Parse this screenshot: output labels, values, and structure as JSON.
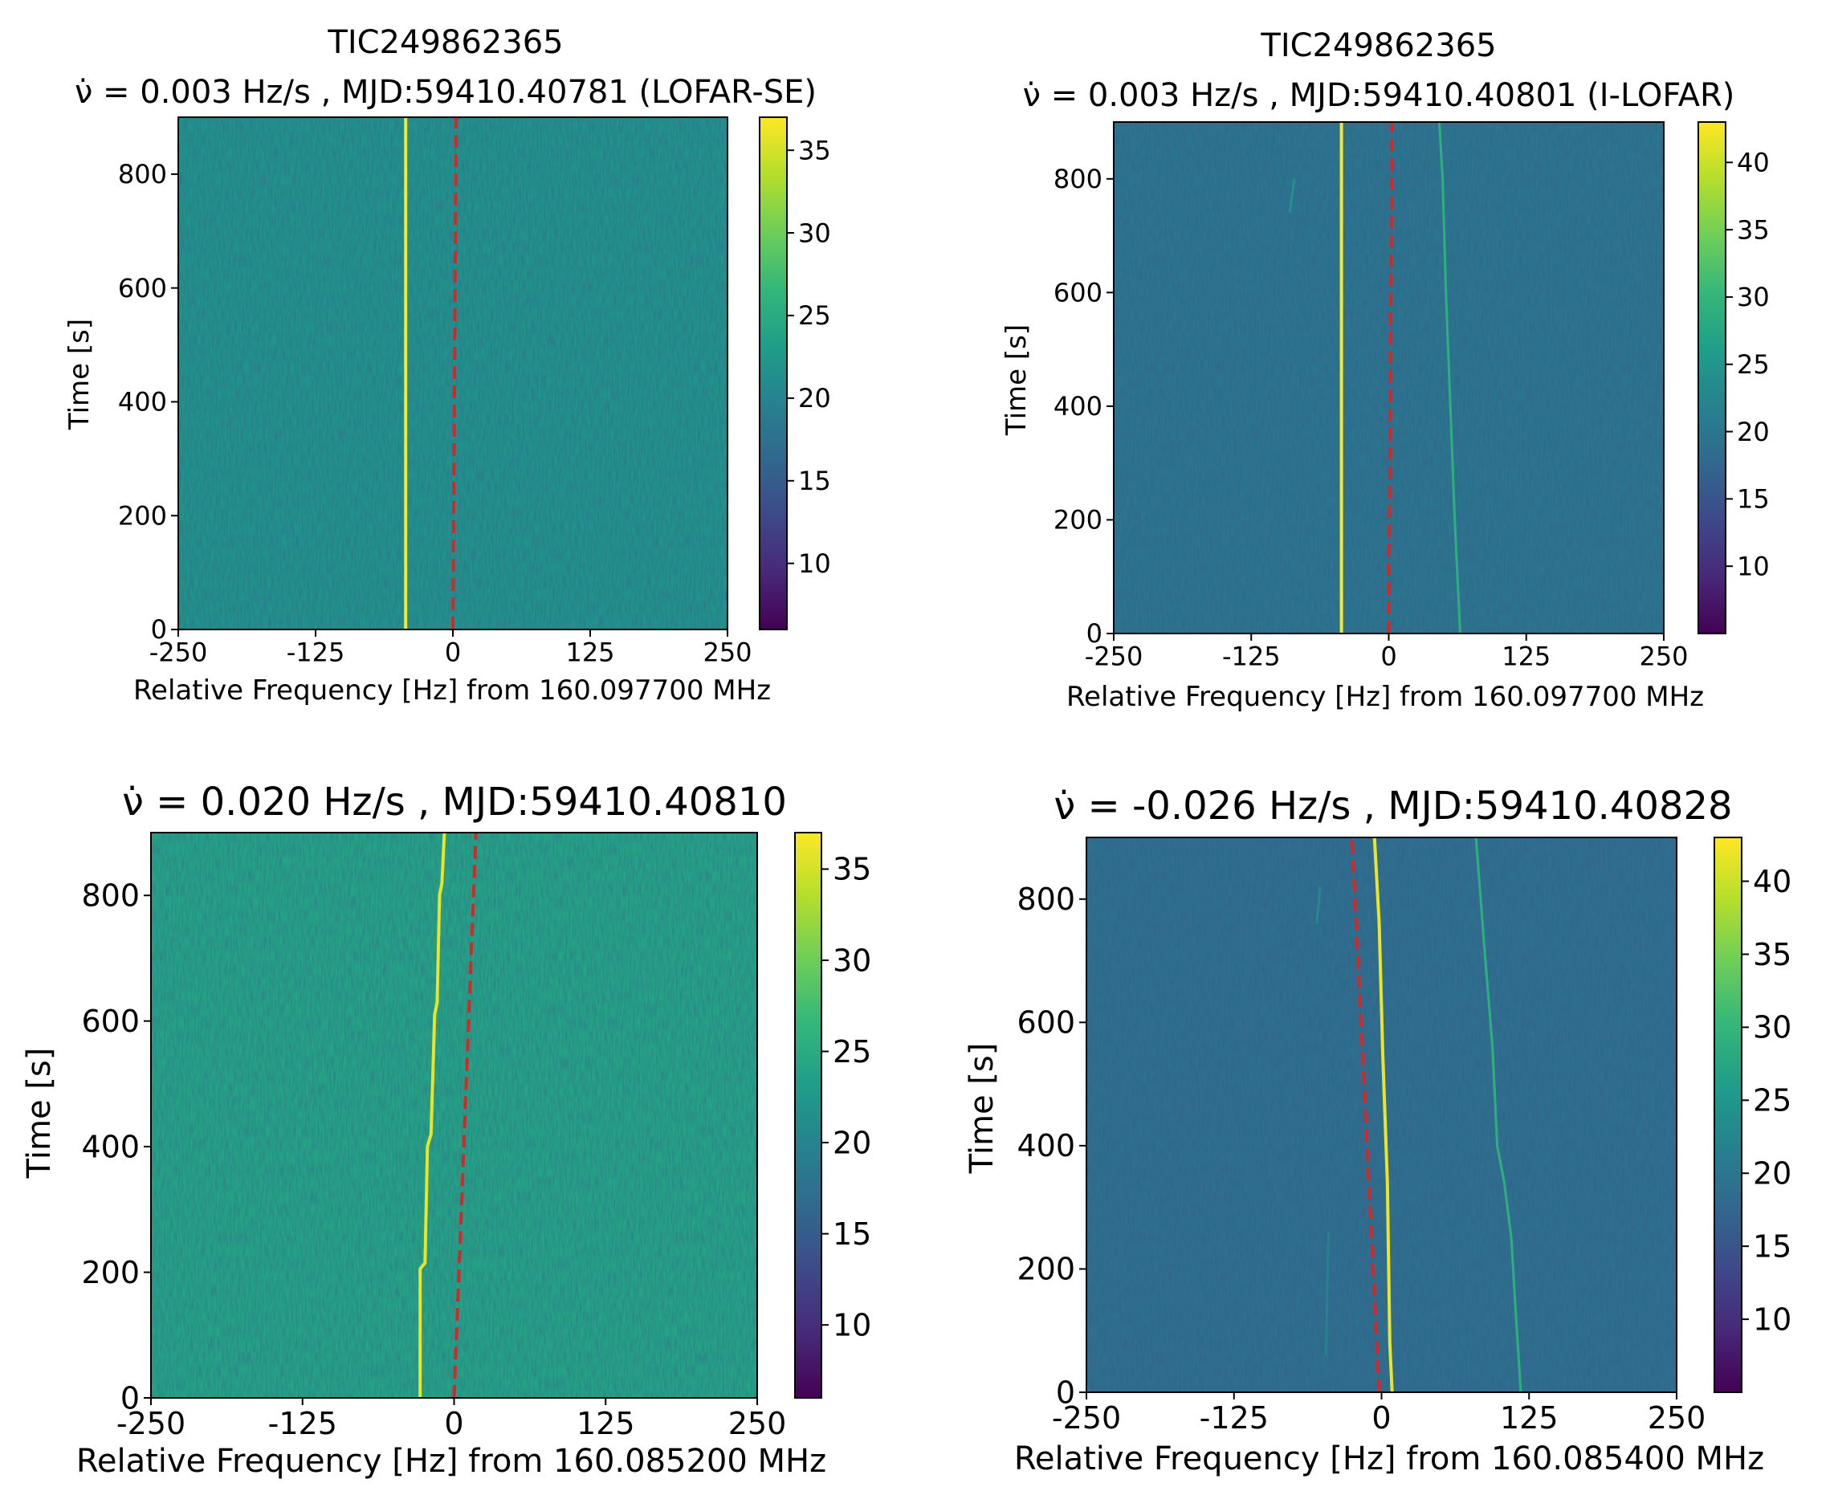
{
  "colormap": {
    "name": "viridis",
    "stops": [
      "#440154",
      "#482878",
      "#3e4989",
      "#31688e",
      "#26828e",
      "#1f9e89",
      "#35b779",
      "#6ece58",
      "#b5de2b",
      "#fde725"
    ]
  },
  "colors": {
    "drift_line": "#d62728",
    "axis": "#000000"
  },
  "chart_data": [
    {
      "type": "heatmap",
      "title": "TIC249862365",
      "subtitle": "ν̇ = 0.003 Hz/s , MJD:59410.40781 (LOFAR-SE)",
      "xlabel": "Relative Frequency [Hz] from 160.097700 MHz",
      "ylabel": "Time [s]",
      "xlim": [
        -250,
        250
      ],
      "ylim": [
        0,
        900
      ],
      "xticks": [
        -250,
        -125,
        0,
        125,
        250
      ],
      "yticks": [
        0,
        200,
        400,
        600,
        800
      ],
      "colorbar": {
        "range": [
          6,
          37
        ],
        "ticks": [
          10,
          15,
          20,
          25,
          30,
          35
        ]
      },
      "background_level": 22,
      "drift_rate_hz_per_s": 0.003,
      "signals": [
        {
          "level": 37,
          "path": [
            [
              -43,
              0
            ],
            [
              -43,
              900
            ]
          ]
        }
      ],
      "drift_line": [
        [
          0,
          0
        ],
        [
          3,
          900
        ]
      ]
    },
    {
      "type": "heatmap",
      "title": "TIC249862365",
      "subtitle": "ν̇ = 0.003 Hz/s , MJD:59410.40801 (I-LOFAR)",
      "xlabel": "Relative Frequency [Hz] from 160.097700 MHz",
      "ylabel": "Time [s]",
      "xlim": [
        -250,
        250
      ],
      "ylim": [
        0,
        900
      ],
      "xticks": [
        -250,
        -125,
        0,
        125,
        250
      ],
      "yticks": [
        0,
        200,
        400,
        600,
        800
      ],
      "colorbar": {
        "range": [
          5,
          43
        ],
        "ticks": [
          10,
          15,
          20,
          25,
          30,
          35,
          40
        ]
      },
      "background_level": 20,
      "drift_rate_hz_per_s": 0.003,
      "signals": [
        {
          "level": 43,
          "path": [
            [
              -43,
              0
            ],
            [
              -43,
              900
            ]
          ]
        },
        {
          "level": 29,
          "path": [
            [
              65,
              0
            ],
            [
              60,
              200
            ],
            [
              56,
              400
            ],
            [
              52,
              600
            ],
            [
              49,
              800
            ],
            [
              46,
              900
            ]
          ]
        },
        {
          "level": 24,
          "path": [
            [
              -90,
              740
            ],
            [
              -86,
              800
            ]
          ]
        }
      ],
      "drift_line": [
        [
          0,
          0
        ],
        [
          3,
          900
        ]
      ]
    },
    {
      "type": "heatmap",
      "title": "",
      "subtitle": "ν̇ = 0.020 Hz/s , MJD:59410.40810",
      "xlabel": "Relative Frequency [Hz] from 160.085200 MHz",
      "ylabel": "Time [s]",
      "xlim": [
        -250,
        250
      ],
      "ylim": [
        0,
        900
      ],
      "xticks": [
        -250,
        -125,
        0,
        125,
        250
      ],
      "yticks": [
        0,
        200,
        400,
        600,
        800
      ],
      "colorbar": {
        "range": [
          6,
          37
        ],
        "ticks": [
          10,
          15,
          20,
          25,
          30,
          35
        ]
      },
      "background_level": 24,
      "drift_rate_hz_per_s": 0.02,
      "signals": [
        {
          "level": 36,
          "path": [
            [
              -28,
              0
            ],
            [
              -28,
              205
            ],
            [
              -24,
              215
            ],
            [
              -22,
              400
            ],
            [
              -19,
              420
            ],
            [
              -16,
              610
            ],
            [
              -14,
              630
            ],
            [
              -12,
              800
            ],
            [
              -10,
              820
            ],
            [
              -8,
              900
            ]
          ]
        }
      ],
      "drift_line": [
        [
          0,
          0
        ],
        [
          18,
          900
        ]
      ]
    },
    {
      "type": "heatmap",
      "title": "",
      "subtitle": "ν̇ = -0.026 Hz/s , MJD:59410.40828",
      "xlabel": "Relative Frequency [Hz] from 160.085400 MHz",
      "ylabel": "Time [s]",
      "xlim": [
        -250,
        250
      ],
      "ylim": [
        0,
        900
      ],
      "xticks": [
        -250,
        -125,
        0,
        125,
        250
      ],
      "yticks": [
        0,
        200,
        400,
        600,
        800
      ],
      "colorbar": {
        "range": [
          5,
          43
        ],
        "ticks": [
          10,
          15,
          20,
          25,
          30,
          35,
          40
        ]
      },
      "background_level": 19,
      "drift_rate_hz_per_s": -0.026,
      "signals": [
        {
          "level": 42,
          "path": [
            [
              9,
              0
            ],
            [
              7,
              80
            ],
            [
              5,
              340
            ],
            [
              1,
              550
            ],
            [
              -2,
              760
            ],
            [
              -6,
              900
            ]
          ]
        },
        {
          "level": 29,
          "path": [
            [
              118,
              0
            ],
            [
              114,
              120
            ],
            [
              110,
              250
            ],
            [
              104,
              340
            ],
            [
              98,
              400
            ],
            [
              94,
              560
            ],
            [
              88,
              700
            ],
            [
              84,
              800
            ],
            [
              80,
              900
            ]
          ]
        },
        {
          "level": 23,
          "path": [
            [
              -55,
              760
            ],
            [
              -52,
              820
            ]
          ]
        },
        {
          "level": 22,
          "path": [
            [
              -47,
              60
            ],
            [
              -45,
              260
            ]
          ]
        }
      ],
      "drift_line": [
        [
          -2,
          0
        ],
        [
          -25,
          900
        ]
      ]
    }
  ]
}
